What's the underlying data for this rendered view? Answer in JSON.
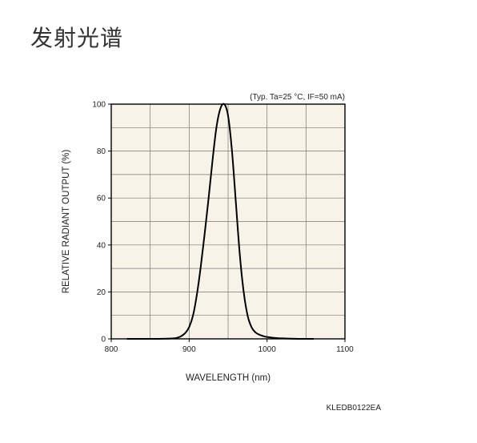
{
  "page": {
    "title": "发射光谱"
  },
  "chart_data": {
    "type": "line",
    "title": "",
    "conditions": "(Typ. Ta=25 °C, IF=50 mA)",
    "xlabel": "WAVELENGTH (nm)",
    "ylabel": "RELATIVE RADIANT OUTPUT (%)",
    "xlim": [
      800,
      1100
    ],
    "ylim": [
      0,
      100
    ],
    "xticks": [
      800,
      900,
      1000,
      1100
    ],
    "yticks": [
      0,
      20,
      40,
      60,
      80,
      100
    ],
    "x_minor_step": 50,
    "y_minor_step": 10,
    "grid": true,
    "background_color": "#f7f3e9",
    "line_color": "#000000",
    "series": [
      {
        "name": "",
        "x": [
          820,
          860,
          880,
          885,
          890,
          895,
          900,
          905,
          910,
          915,
          920,
          925,
          930,
          935,
          940,
          945,
          950,
          955,
          960,
          965,
          970,
          975,
          980,
          985,
          990,
          995,
          1000,
          1010,
          1020,
          1040,
          1060
        ],
        "y": [
          0,
          0,
          0.2,
          0.5,
          1.2,
          2.5,
          5,
          10,
          19,
          31,
          45,
          60,
          76,
          90,
          98,
          100,
          95,
          80,
          58,
          36,
          20,
          10,
          5,
          2.8,
          1.8,
          1.2,
          0.8,
          0.4,
          0.2,
          0,
          0
        ]
      }
    ],
    "footer_code": "KLEDB0122EA"
  }
}
